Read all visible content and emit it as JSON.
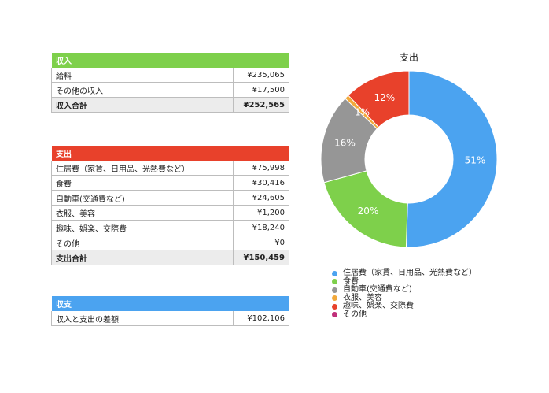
{
  "income": {
    "header": "収入",
    "rows": [
      {
        "label": "給料",
        "value": "¥235,065"
      },
      {
        "label": "その他の収入",
        "value": "¥17,500"
      }
    ],
    "total_label": "収入合計",
    "total_value": "¥252,565",
    "color": "#7ed04b"
  },
  "expenses": {
    "header": "支出",
    "rows": [
      {
        "label": "住居費（家賃、日用品、光熱費など）",
        "value": "¥75,998"
      },
      {
        "label": "食費",
        "value": "¥30,416"
      },
      {
        "label": "自動車(交通費など)",
        "value": "¥24,605"
      },
      {
        "label": "衣服、美容",
        "value": "¥1,200"
      },
      {
        "label": "趣味、娯楽、交際費",
        "value": "¥18,240"
      },
      {
        "label": "その他",
        "value": "¥0"
      }
    ],
    "total_label": "支出合計",
    "total_value": "¥150,459",
    "color": "#e8412b"
  },
  "balance": {
    "header": "収支",
    "rows": [
      {
        "label": "収入と支出の差額",
        "value": "¥102,106"
      }
    ],
    "color": "#4ba3f0"
  },
  "chart_data": {
    "type": "pie",
    "title": "支出",
    "labels": [
      "住居費（家賃、日用品、光熱費など）",
      "食費",
      "自動車(交通費など)",
      "衣服、美容",
      "趣味、娯楽、交際費",
      "その他"
    ],
    "values": [
      75998,
      30416,
      24605,
      1200,
      18240,
      0
    ],
    "percent_labels": [
      "51%",
      "20%",
      "16%",
      "1%",
      "12%",
      ""
    ],
    "colors": [
      "#4ba3f0",
      "#7ed04b",
      "#969696",
      "#f2a93b",
      "#e8412b",
      "#c0307a"
    ],
    "donut": true,
    "legend_position": "bottom"
  }
}
